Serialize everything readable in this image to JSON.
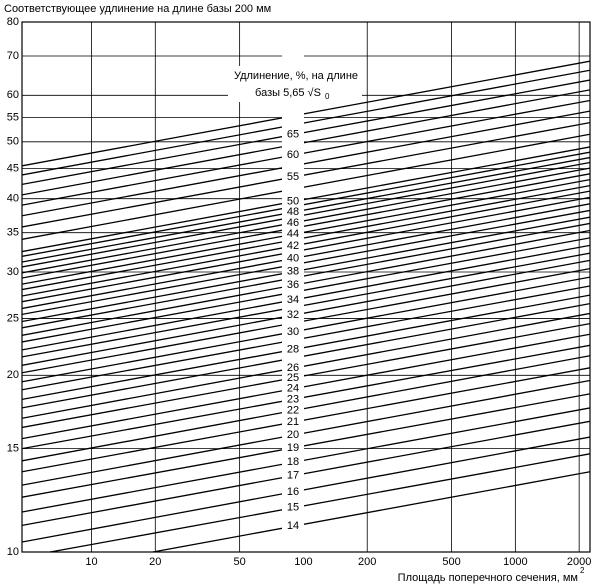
{
  "chart_data": {
    "type": "line",
    "title": "Соответствующее удлинение на длине базы 200 мм",
    "x_label": "Площадь поперечного сечения, мм",
    "x_label_sup": "2",
    "legend_title_line1": "Удлинение, %, на длине",
    "legend_title_line2": "базы 5,65 √S",
    "legend_title_sub": "0",
    "log_x": true,
    "log_y": true,
    "grid": true,
    "color": "#000000",
    "xlim": [
      4.7,
      2250
    ],
    "ylim": [
      10,
      80
    ],
    "xticks": [
      10,
      20,
      50,
      100,
      200,
      500,
      1000,
      2000
    ],
    "yticks": [
      10,
      15,
      20,
      25,
      30,
      35,
      40,
      45,
      50,
      55,
      60,
      70,
      80
    ],
    "x": [
      4.7,
      2250
    ],
    "series": [
      {
        "name": "14",
        "values": [
          9.1,
          13.7
        ]
      },
      {
        "name": "15",
        "values": [
          9.8,
          14.7
        ]
      },
      {
        "name": "16",
        "values": [
          10.4,
          15.7
        ]
      },
      {
        "name": "17",
        "values": [
          11.1,
          16.7
        ]
      },
      {
        "name": "18",
        "values": [
          11.7,
          17.6
        ]
      },
      {
        "name": "19",
        "values": [
          12.4,
          18.6
        ]
      },
      {
        "name": "20",
        "values": [
          13,
          19.6
        ]
      },
      {
        "name": "21",
        "values": [
          13.7,
          20.6
        ]
      },
      {
        "name": "22",
        "values": [
          14.3,
          21.6
        ]
      },
      {
        "name": "23",
        "values": [
          15,
          22.5
        ]
      },
      {
        "name": "24",
        "values": [
          15.6,
          23.5
        ]
      },
      {
        "name": "25",
        "values": [
          16.3,
          24.5
        ]
      },
      {
        "name": "26",
        "values": [
          16.9,
          25.5
        ]
      },
      {
        "values": [
          17.6,
          26.5
        ]
      },
      {
        "name": "28",
        "values": [
          18.2,
          27.4
        ]
      },
      {
        "values": [
          18.9,
          28.4
        ]
      },
      {
        "name": "30",
        "values": [
          19.5,
          29.4
        ]
      },
      {
        "values": [
          20.2,
          30.4
        ]
      },
      {
        "name": "32",
        "values": [
          20.8,
          31.4
        ]
      },
      {
        "values": [
          21.5,
          32.3
        ]
      },
      {
        "name": "34",
        "values": [
          22.1,
          33.3
        ]
      },
      {
        "values": [
          22.8,
          34.3
        ]
      },
      {
        "name": "36",
        "values": [
          23.4,
          35.3
        ]
      },
      {
        "values": [
          24.1,
          36.3
        ]
      },
      {
        "name": "38",
        "values": [
          24.7,
          37.2
        ]
      },
      {
        "values": [
          25.4,
          38.2
        ]
      },
      {
        "name": "40",
        "values": [
          26,
          39.2
        ]
      },
      {
        "values": [
          26.7,
          40.2
        ]
      },
      {
        "name": "42",
        "values": [
          27.3,
          41.2
        ]
      },
      {
        "values": [
          28,
          42.1
        ]
      },
      {
        "name": "44",
        "values": [
          28.6,
          43.1
        ]
      },
      {
        "values": [
          29.3,
          44.1
        ]
      },
      {
        "name": "46",
        "values": [
          29.9,
          45.1
        ]
      },
      {
        "values": [
          30.6,
          46.1
        ]
      },
      {
        "name": "48",
        "values": [
          31.2,
          47
        ]
      },
      {
        "values": [
          31.9,
          48
        ]
      },
      {
        "name": "50",
        "values": [
          32.5,
          49
        ]
      },
      {
        "values": [
          34.1,
          51.5
        ]
      },
      {
        "name": "55",
        "values": [
          35.8,
          53.9
        ]
      },
      {
        "values": [
          37.4,
          56.4
        ]
      },
      {
        "name": "60",
        "values": [
          39,
          58.8
        ]
      },
      {
        "values": [
          40.6,
          61.3
        ]
      },
      {
        "name": "65",
        "values": [
          42.3,
          63.7
        ]
      },
      {
        "values": [
          43.9,
          66.2
        ]
      },
      {
        "values": [
          45.5,
          68.6
        ]
      }
    ]
  }
}
